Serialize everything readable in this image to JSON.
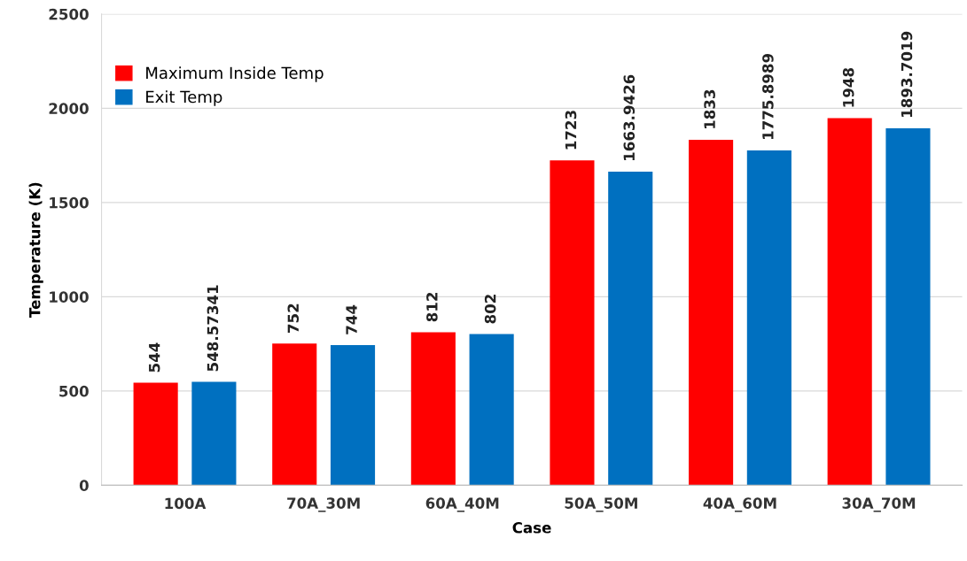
{
  "chart_data": {
    "type": "bar",
    "xlabel": "Case",
    "ylabel": "Temperature (K)",
    "categories": [
      "100A",
      "70A_30M",
      "60A_40M",
      "50A_50M",
      "40A_60M",
      "30A_70M"
    ],
    "series": [
      {
        "name": "Maximum Inside Temp",
        "color": "#ff0000",
        "values": [
          544,
          752,
          812,
          1723,
          1833,
          1948
        ]
      },
      {
        "name": "Exit Temp",
        "color": "#0070c0",
        "values": [
          548.57341,
          744,
          802,
          1663.9426,
          1775.8989,
          1893.7019
        ]
      }
    ],
    "ylim": [
      0,
      2500
    ],
    "yticks": [
      0,
      500,
      1000,
      1500,
      2000,
      2500
    ],
    "grid": "y",
    "legend": "top left",
    "data_labels": true
  }
}
